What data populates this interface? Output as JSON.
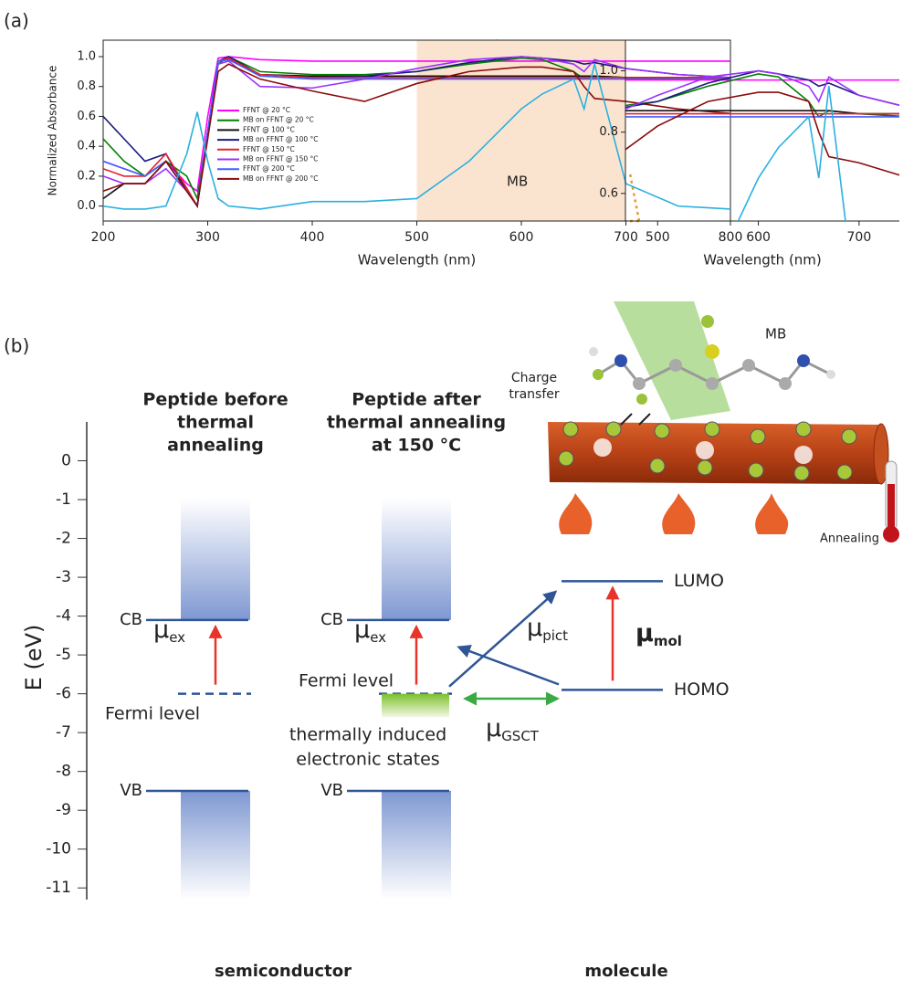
{
  "chart_data": [
    {
      "type": "line",
      "panel_label": "(a)",
      "xlabel": "Wavelength (nm)",
      "ylabel": "Normalized Absorbance",
      "x": [
        200,
        220,
        240,
        260,
        280,
        290,
        300,
        310,
        320,
        350,
        400,
        450,
        500,
        550,
        600,
        620,
        650,
        660,
        670,
        700,
        750,
        800
      ],
      "xlim": [
        200,
        800
      ],
      "xticks": [
        200,
        300,
        400,
        500,
        600,
        700,
        800
      ],
      "ylim": [
        -0.1,
        1.11
      ],
      "yticks": [
        {
          "value": 0,
          "label": "0.0"
        },
        0.2,
        0.4,
        0.6,
        0.8,
        {
          "value": 1,
          "label": "1.0"
        }
      ],
      "highlight": [
        500,
        700
      ],
      "highlight_color": "#fbe4cf",
      "series": [
        {
          "name": "FFNT @ 20 °C",
          "color": "#ff00ff",
          "values": [
            0.3,
            0.25,
            0.2,
            0.3,
            0.15,
            0.1,
            0.6,
            0.99,
            1.0,
            0.98,
            0.97,
            0.97,
            0.97,
            0.97,
            0.97,
            0.97,
            0.97,
            0.97,
            0.97,
            0.97,
            0.97,
            0.97
          ]
        },
        {
          "name": "MB on FFNT @ 20 °C",
          "color": "#008000",
          "values": [
            0.45,
            0.3,
            0.2,
            0.3,
            0.2,
            0.05,
            0.5,
            0.95,
            1.0,
            0.9,
            0.88,
            0.88,
            0.9,
            0.95,
            0.99,
            0.98,
            0.9,
            0.85,
            0.87,
            0.86,
            0.85,
            0.85
          ]
        },
        {
          "name": "FFNT @ 100 °C",
          "color": "#111111",
          "values": [
            0.05,
            0.15,
            0.15,
            0.3,
            0.1,
            0.0,
            0.5,
            0.97,
            0.98,
            0.88,
            0.87,
            0.87,
            0.87,
            0.87,
            0.87,
            0.87,
            0.87,
            0.87,
            0.87,
            0.86,
            0.86,
            0.86
          ]
        },
        {
          "name": "MB on FFNT @ 100 °C",
          "color": "#1a1a80",
          "values": [
            0.6,
            0.45,
            0.3,
            0.35,
            0.1,
            0.0,
            0.5,
            0.97,
            1.0,
            0.88,
            0.86,
            0.87,
            0.9,
            0.96,
            1.0,
            0.99,
            0.97,
            0.95,
            0.96,
            0.92,
            0.88,
            0.86
          ]
        },
        {
          "name": "FFNT @ 150 °C",
          "color": "#e8202a",
          "values": [
            0.25,
            0.2,
            0.2,
            0.35,
            0.12,
            0.0,
            0.5,
            0.97,
            0.99,
            0.88,
            0.86,
            0.86,
            0.86,
            0.86,
            0.86,
            0.86,
            0.86,
            0.86,
            0.86,
            0.86,
            0.86,
            0.86
          ]
        },
        {
          "name": "MB on FFNT @ 150 °C",
          "color": "#9b30ff",
          "values": [
            0.2,
            0.15,
            0.15,
            0.25,
            0.1,
            0.0,
            0.5,
            0.95,
            0.97,
            0.8,
            0.79,
            0.85,
            0.92,
            0.98,
            1.0,
            0.99,
            0.95,
            0.9,
            0.98,
            0.92,
            0.88,
            0.86
          ]
        },
        {
          "name": "FFNT @ 200 °C",
          "color": "#4060ff",
          "values": [
            0.3,
            0.25,
            0.2,
            0.3,
            0.1,
            0.0,
            0.5,
            0.97,
            0.98,
            0.87,
            0.85,
            0.85,
            0.85,
            0.85,
            0.85,
            0.85,
            0.85,
            0.85,
            0.85,
            0.85,
            0.85,
            0.85
          ]
        },
        {
          "name": "MB on FFNT @ 200 °C",
          "color": "#8b0a0a",
          "values": [
            0.1,
            0.15,
            0.15,
            0.3,
            0.1,
            0.0,
            0.45,
            0.9,
            0.95,
            0.85,
            0.77,
            0.7,
            0.82,
            0.9,
            0.93,
            0.93,
            0.9,
            0.8,
            0.72,
            0.7,
            0.65,
            0.62
          ]
        }
      ],
      "labeled_series": {
        "name": "MB",
        "color": "#2ab0e0",
        "values": [
          0.0,
          -0.02,
          -0.02,
          0.0,
          0.35,
          0.63,
          0.3,
          0.05,
          0.0,
          -0.02,
          0.03,
          0.03,
          0.05,
          0.3,
          0.65,
          0.75,
          0.85,
          0.65,
          0.95,
          0.15,
          0.0,
          -0.02
        ]
      }
    },
    {
      "type": "inset",
      "xlabel": "Wavelength (nm)",
      "xlim": [
        468,
        740
      ],
      "xticks": [
        500,
        600,
        700
      ],
      "ylim": [
        0.51,
        1.1
      ],
      "yticks": [
        0.6,
        0.8,
        {
          "value": 1,
          "label": "1.0"
        }
      ]
    },
    {
      "type": "energy",
      "panel_label": "(b)",
      "ylabel": "E (eV)",
      "ylim": [
        -11.3,
        1.0
      ],
      "yticks": [
        0,
        -1,
        -2,
        -3,
        -4,
        -5,
        -6,
        -7,
        -8,
        -9,
        -10,
        -11
      ],
      "level_labels": {
        "cb": "CB",
        "vb": "VB",
        "fermi": "Fermi level",
        "lumo": "LUMO",
        "homo": "HOMO"
      },
      "before": {
        "title": [
          "Peptide before",
          "thermal",
          "annealing"
        ],
        "cb": -4.1,
        "vb": -8.5,
        "fermi": -6.0
      },
      "after": {
        "title": [
          "Peptide after",
          "thermal annealing",
          "at 150 °C"
        ],
        "cb": -4.1,
        "vb": -8.5,
        "fermi": -6.0,
        "states": [
          -6.0,
          -6.6
        ],
        "states_label": [
          "thermally  induced",
          "electronic states"
        ]
      },
      "molecule": {
        "lumo": -3.1,
        "homo": -5.9
      },
      "transitions": {
        "mu": "μ",
        "ex": "ex",
        "pict": "pict",
        "gsct": "GSCT",
        "mol": "mol"
      },
      "bottom_labels": {
        "semiconductor": "semiconductor",
        "molecule": "molecule"
      },
      "illustration": {
        "molecule": "MB",
        "charge_transfer": [
          "Charge",
          "transfer"
        ],
        "annealing": "Annealing"
      }
    }
  ]
}
